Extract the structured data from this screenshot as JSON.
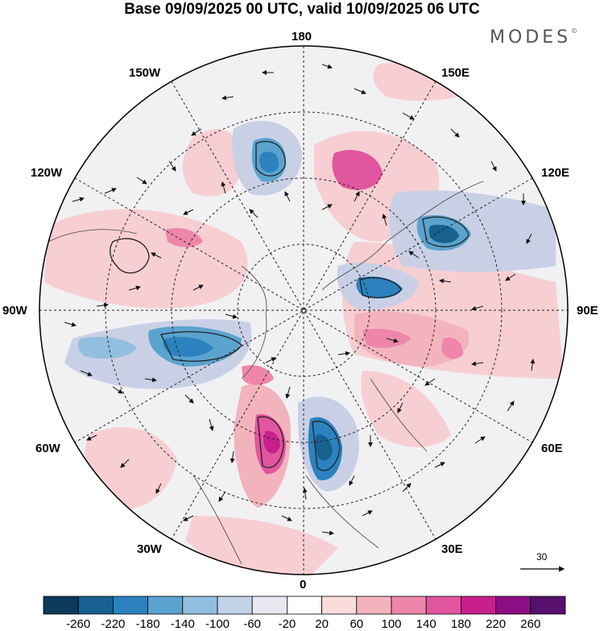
{
  "title": "Base 09/09/2025 00 UTC, valid 10/09/2025 06 UTC",
  "brand": "MODES",
  "brand_mark": "©",
  "longitude_labels": {
    "top": "180",
    "upper_left": "150W",
    "upper_right": "150E",
    "mid_upper_left": "120W",
    "mid_upper_right": "120E",
    "left": "90W",
    "right": "90E",
    "mid_lower_left": "60W",
    "mid_lower_right": "60E",
    "lower_left": "30W",
    "lower_right": "30E",
    "bottom": "0"
  },
  "vector_scale": {
    "label": "30"
  },
  "colorbar": {
    "colors": [
      "#0d3a5a",
      "#17608f",
      "#2b82be",
      "#5aa3cf",
      "#92bfdf",
      "#c3d3e8",
      "#e8e8f3",
      "#ffffff",
      "#fbdcdc",
      "#f3b3bd",
      "#ee86ab",
      "#e2559f",
      "#c71f8c",
      "#8b0e83",
      "#58106e"
    ],
    "ticks": [
      "-260",
      "-220",
      "-180",
      "-140",
      "-100",
      "-60",
      "-20",
      "20",
      "60",
      "100",
      "140",
      "180",
      "220",
      "260"
    ]
  }
}
